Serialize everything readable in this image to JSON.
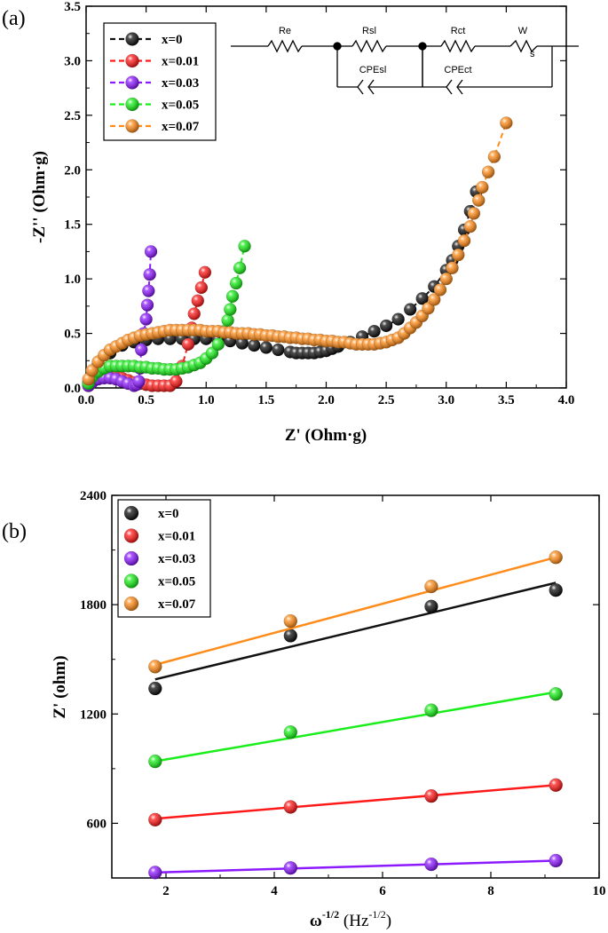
{
  "panel_a_label": "(a)",
  "panel_b_label": "(b)",
  "circuit": {
    "labels": [
      "Re",
      "Rsl",
      "Rct",
      "W",
      "CPEsl",
      "CPEct"
    ],
    "w_subscript": "s"
  },
  "chart_data": [
    {
      "type": "scatter",
      "panel": "(a)",
      "xlabel": "Z' (Ohm·g)",
      "ylabel": "-Z'' (Ohm·g)",
      "xlim": [
        0.0,
        4.0
      ],
      "ylim": [
        0.0,
        3.5
      ],
      "xticks": [
        "0.0",
        "0.5",
        "1.0",
        "1.5",
        "2.0",
        "2.5",
        "3.0",
        "3.5",
        "4.0"
      ],
      "yticks": [
        "0.0",
        "0.5",
        "1.0",
        "1.5",
        "2.0",
        "2.5",
        "3.0",
        "3.5"
      ],
      "legend_position": "top-left",
      "series": [
        {
          "name": "x=0",
          "color": "#111111",
          "x": [
            0.02,
            0.05,
            0.1,
            0.2,
            0.3,
            0.4,
            0.5,
            0.6,
            0.7,
            0.8,
            0.9,
            1.0,
            1.1,
            1.2,
            1.3,
            1.4,
            1.5,
            1.6,
            1.7,
            1.75,
            1.8,
            1.85,
            1.9,
            1.95,
            2.0,
            2.05,
            2.1,
            2.2,
            2.3,
            2.4,
            2.5,
            2.6,
            2.7,
            2.8,
            2.9,
            3.0,
            3.05,
            3.1,
            3.15,
            3.2,
            3.25
          ],
          "y": [
            0.05,
            0.15,
            0.22,
            0.32,
            0.39,
            0.42,
            0.44,
            0.45,
            0.45,
            0.45,
            0.45,
            0.45,
            0.44,
            0.43,
            0.41,
            0.39,
            0.37,
            0.35,
            0.33,
            0.32,
            0.32,
            0.32,
            0.32,
            0.33,
            0.34,
            0.36,
            0.38,
            0.42,
            0.47,
            0.52,
            0.57,
            0.63,
            0.72,
            0.82,
            0.93,
            1.08,
            1.17,
            1.3,
            1.45,
            1.62,
            1.8
          ]
        },
        {
          "name": "x=0.01",
          "color": "#ff1a1a",
          "x": [
            0.02,
            0.05,
            0.1,
            0.15,
            0.2,
            0.25,
            0.3,
            0.35,
            0.4,
            0.45,
            0.5,
            0.55,
            0.6,
            0.65,
            0.7,
            0.75,
            0.8,
            0.85,
            0.88,
            0.9,
            0.93,
            0.96,
            0.99
          ],
          "y": [
            0.02,
            0.07,
            0.1,
            0.11,
            0.11,
            0.1,
            0.09,
            0.07,
            0.05,
            0.04,
            0.03,
            0.02,
            0.02,
            0.02,
            0.02,
            0.06,
            0.2,
            0.4,
            0.55,
            0.68,
            0.8,
            0.92,
            1.06
          ]
        },
        {
          "name": "x=0.03",
          "color": "#8c1aff",
          "x": [
            0.02,
            0.05,
            0.1,
            0.15,
            0.2,
            0.25,
            0.3,
            0.35,
            0.4,
            0.42,
            0.44,
            0.45,
            0.46,
            0.48,
            0.5,
            0.51,
            0.52,
            0.53,
            0.54
          ],
          "y": [
            0.02,
            0.05,
            0.08,
            0.09,
            0.09,
            0.08,
            0.06,
            0.04,
            0.02,
            0.03,
            0.06,
            0.18,
            0.35,
            0.5,
            0.63,
            0.76,
            0.89,
            1.04,
            1.25
          ]
        },
        {
          "name": "x=0.05",
          "color": "#1aee1a",
          "x": [
            0.02,
            0.05,
            0.1,
            0.15,
            0.2,
            0.25,
            0.3,
            0.35,
            0.4,
            0.45,
            0.5,
            0.55,
            0.6,
            0.65,
            0.7,
            0.75,
            0.8,
            0.85,
            0.9,
            0.95,
            1.0,
            1.05,
            1.1,
            1.15,
            1.18,
            1.2,
            1.22,
            1.25,
            1.28,
            1.32
          ],
          "y": [
            0.04,
            0.1,
            0.15,
            0.18,
            0.2,
            0.2,
            0.2,
            0.2,
            0.2,
            0.19,
            0.19,
            0.18,
            0.18,
            0.17,
            0.17,
            0.17,
            0.18,
            0.19,
            0.21,
            0.23,
            0.27,
            0.32,
            0.4,
            0.52,
            0.62,
            0.72,
            0.84,
            0.96,
            1.1,
            1.3
          ]
        },
        {
          "name": "x=0.07",
          "color": "#ff8c1a",
          "x": [
            0.02,
            0.05,
            0.1,
            0.15,
            0.2,
            0.25,
            0.3,
            0.35,
            0.4,
            0.45,
            0.5,
            0.55,
            0.6,
            0.65,
            0.7,
            0.75,
            0.8,
            0.85,
            0.9,
            0.95,
            1.0,
            1.05,
            1.1,
            1.15,
            1.2,
            1.25,
            1.3,
            1.35,
            1.4,
            1.45,
            1.5,
            1.55,
            1.6,
            1.65,
            1.7,
            1.75,
            1.8,
            1.85,
            1.9,
            1.95,
            2.0,
            2.05,
            2.1,
            2.15,
            2.2,
            2.25,
            2.3,
            2.35,
            2.4,
            2.45,
            2.5,
            2.55,
            2.6,
            2.65,
            2.7,
            2.75,
            2.8,
            2.85,
            2.9,
            2.95,
            3.0,
            3.05,
            3.1,
            3.15,
            3.2,
            3.23,
            3.27,
            3.3,
            3.35,
            3.4,
            3.5
          ],
          "y": [
            0.08,
            0.16,
            0.24,
            0.3,
            0.35,
            0.38,
            0.41,
            0.44,
            0.46,
            0.48,
            0.49,
            0.5,
            0.51,
            0.52,
            0.53,
            0.53,
            0.53,
            0.53,
            0.53,
            0.53,
            0.52,
            0.52,
            0.52,
            0.51,
            0.51,
            0.5,
            0.5,
            0.5,
            0.49,
            0.49,
            0.48,
            0.48,
            0.47,
            0.47,
            0.46,
            0.46,
            0.45,
            0.45,
            0.44,
            0.44,
            0.43,
            0.43,
            0.42,
            0.42,
            0.41,
            0.4,
            0.4,
            0.4,
            0.4,
            0.41,
            0.42,
            0.44,
            0.46,
            0.5,
            0.55,
            0.6,
            0.66,
            0.73,
            0.81,
            0.9,
            1.0,
            1.1,
            1.22,
            1.35,
            1.48,
            1.6,
            1.72,
            1.84,
            1.98,
            2.12,
            2.43
          ]
        }
      ]
    },
    {
      "type": "scatter",
      "panel": "(b)",
      "xlabel": "ω",
      "xlabel_sup": "-1/2",
      "xlabel_unit": "Hz",
      "xlabel_unit_sup": "-1/2",
      "ylabel": "Z' (ohm)",
      "xlim": [
        1.0,
        10.0
      ],
      "ylim": [
        300,
        2400
      ],
      "xticks": [
        "2",
        "4",
        "6",
        "8",
        "10"
      ],
      "yticks": [
        "600",
        "1200",
        "1800",
        "2400"
      ],
      "legend_position": "top-left",
      "fit_lines": true,
      "x": [
        1.8,
        4.3,
        6.9,
        9.2
      ],
      "series": [
        {
          "name": "x=0",
          "color": "#111111",
          "values": [
            1340,
            1630,
            1790,
            1880
          ],
          "fit": [
            1390,
            1920
          ]
        },
        {
          "name": "x=0.01",
          "color": "#ff1a1a",
          "values": [
            620,
            690,
            750,
            810
          ],
          "fit": [
            625,
            810
          ]
        },
        {
          "name": "x=0.03",
          "color": "#8c1aff",
          "values": [
            330,
            355,
            375,
            395
          ],
          "fit": [
            330,
            395
          ]
        },
        {
          "name": "x=0.05",
          "color": "#1aee1a",
          "values": [
            940,
            1100,
            1220,
            1310
          ],
          "fit": [
            940,
            1320
          ]
        },
        {
          "name": "x=0.07",
          "color": "#ff8c1a",
          "values": [
            1460,
            1710,
            1900,
            2060
          ],
          "fit": [
            1470,
            2060
          ]
        }
      ]
    }
  ]
}
